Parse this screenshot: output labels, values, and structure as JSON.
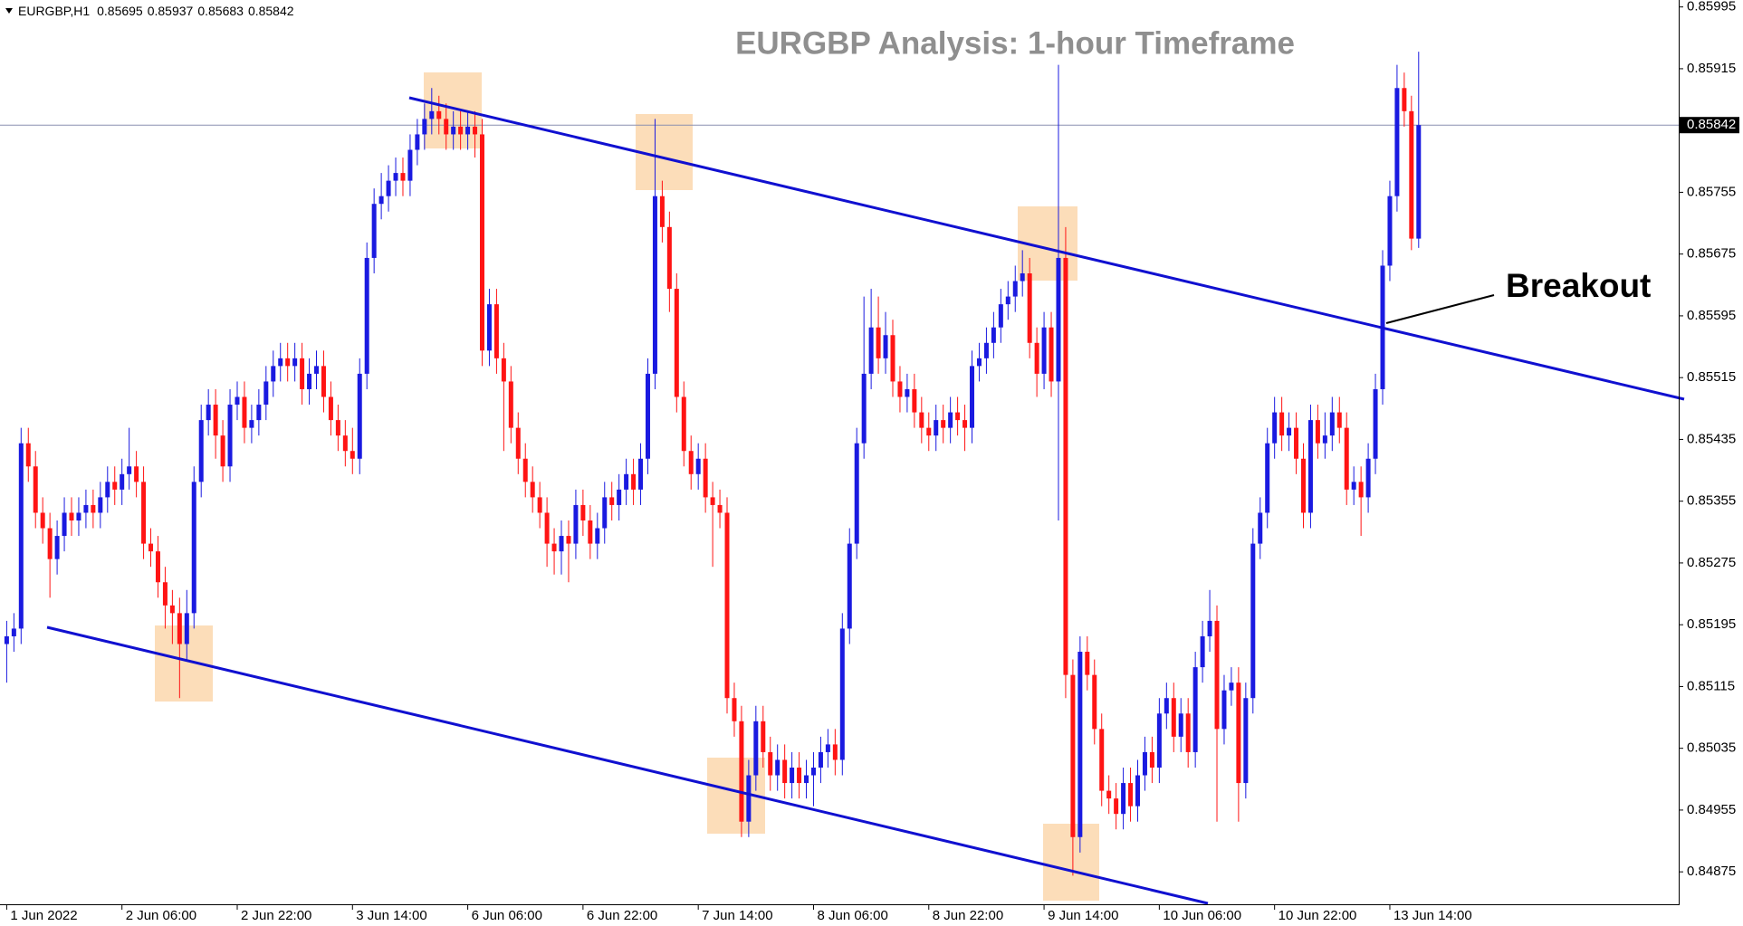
{
  "chart_data": {
    "type": "candlestick",
    "title": "EURGBP Analysis: 1-hour Timeframe",
    "symbol": "EURGBP,H1",
    "header_values": [
      0.85695,
      0.85937,
      0.85683,
      0.85842
    ],
    "annotation": "Breakout",
    "current_price": 0.85842,
    "up_color": "#1a1ae0",
    "down_color": "#ff1414",
    "ylim": [
      0.84833,
      0.86004
    ],
    "yticks": [
      0.85995,
      0.85915,
      0.85755,
      0.85675,
      0.85595,
      0.85515,
      0.85435,
      0.85355,
      0.85275,
      0.85195,
      0.85115,
      0.85035,
      0.84955,
      0.84875
    ],
    "xlim": [
      -0.93,
      232.1
    ],
    "xticks": [
      {
        "value": 0,
        "label": "1 Jun 2022"
      },
      {
        "value": 16,
        "label": "2 Jun 06:00"
      },
      {
        "value": 32,
        "label": "2 Jun 22:00"
      },
      {
        "value": 48,
        "label": "3 Jun 14:00"
      },
      {
        "value": 64,
        "label": "6 Jun 06:00"
      },
      {
        "value": 80,
        "label": "6 Jun 22:00"
      },
      {
        "value": 96,
        "label": "7 Jun 14:00"
      },
      {
        "value": 112,
        "label": "8 Jun 06:00"
      },
      {
        "value": 128,
        "label": "8 Jun 22:00"
      },
      {
        "value": 144,
        "label": "9 Jun 14:00"
      },
      {
        "value": 160,
        "label": "10 Jun 06:00"
      },
      {
        "value": 176,
        "label": "10 Jun 22:00"
      },
      {
        "value": 192,
        "label": "13 Jun 14:00"
      }
    ],
    "open": [
      0.8517,
      0.8518,
      0.8519,
      0.8543,
      0.854,
      0.8534,
      0.8532,
      0.8528,
      0.8531,
      0.8534,
      0.8533,
      0.8534,
      0.8535,
      0.8534,
      0.8536,
      0.8538,
      0.8537,
      0.8539,
      0.854,
      0.8538,
      0.853,
      0.8529,
      0.8525,
      0.8522,
      0.8521,
      0.8517,
      0.8521,
      0.8538,
      0.8546,
      0.8548,
      0.8544,
      0.854,
      0.8548,
      0.8549,
      0.8545,
      0.8546,
      0.8548,
      0.8551,
      0.8553,
      0.8554,
      0.8553,
      0.8554,
      0.855,
      0.8552,
      0.8553,
      0.8549,
      0.8546,
      0.8544,
      0.8542,
      0.8541,
      0.8552,
      0.8567,
      0.8574,
      0.8575,
      0.8577,
      0.8578,
      0.8577,
      0.8581,
      0.8583,
      0.8585,
      0.8586,
      0.8585,
      0.8583,
      0.8584,
      0.8583,
      0.8584,
      0.8583,
      0.8555,
      0.8561,
      0.8554,
      0.8551,
      0.8545,
      0.8541,
      0.8538,
      0.8536,
      0.8534,
      0.853,
      0.8529,
      0.8531,
      0.853,
      0.8535,
      0.8533,
      0.853,
      0.8532,
      0.8536,
      0.8535,
      0.8537,
      0.8539,
      0.8537,
      0.8541,
      0.8552,
      0.8575,
      0.8571,
      0.8563,
      0.8549,
      0.8542,
      0.8539,
      0.8541,
      0.8536,
      0.8535,
      0.8534,
      0.851,
      0.8507,
      0.8494,
      0.85,
      0.8507,
      0.8503,
      0.85,
      0.8502,
      0.8499,
      0.8501,
      0.8499,
      0.85,
      0.8501,
      0.8503,
      0.8504,
      0.8502,
      0.8519,
      0.853,
      0.8543,
      0.8552,
      0.8558,
      0.8554,
      0.8557,
      0.8551,
      0.8549,
      0.855,
      0.8547,
      0.8545,
      0.8544,
      0.8546,
      0.8545,
      0.8547,
      0.8546,
      0.8545,
      0.8553,
      0.8554,
      0.8556,
      0.8558,
      0.8561,
      0.8562,
      0.8564,
      0.8565,
      0.8556,
      0.8552,
      0.8558,
      0.8551,
      0.8567,
      0.8513,
      0.8492,
      0.8516,
      0.8513,
      0.8506,
      0.8498,
      0.8497,
      0.8495,
      0.8499,
      0.8496,
      0.85,
      0.8503,
      0.8501,
      0.8508,
      0.851,
      0.8505,
      0.8508,
      0.8503,
      0.8514,
      0.8518,
      0.852,
      0.8506,
      0.8511,
      0.8512,
      0.8499,
      0.851,
      0.853,
      0.8534,
      0.8543,
      0.8547,
      0.8544,
      0.8545,
      0.8541,
      0.8534,
      0.8546,
      0.8543,
      0.8544,
      0.8547,
      0.8545,
      0.8537,
      0.8538,
      0.8536,
      0.8541,
      0.855,
      0.8566,
      0.8575,
      0.8589,
      0.8586,
      0.85695
    ],
    "high": [
      0.852,
      0.8521,
      0.8545,
      0.8545,
      0.8542,
      0.8536,
      0.8534,
      0.8533,
      0.8536,
      0.8536,
      0.8536,
      0.8537,
      0.8537,
      0.8538,
      0.854,
      0.854,
      0.8541,
      0.8545,
      0.8542,
      0.854,
      0.8532,
      0.8531,
      0.8527,
      0.8524,
      0.8523,
      0.8524,
      0.854,
      0.8548,
      0.855,
      0.855,
      0.8546,
      0.855,
      0.8551,
      0.8551,
      0.8548,
      0.855,
      0.8553,
      0.8555,
      0.8556,
      0.8556,
      0.8556,
      0.8556,
      0.8554,
      0.8555,
      0.8555,
      0.8551,
      0.8548,
      0.8546,
      0.8545,
      0.8554,
      0.8569,
      0.8576,
      0.8578,
      0.8579,
      0.858,
      0.858,
      0.8583,
      0.8585,
      0.8587,
      0.8589,
      0.8588,
      0.8587,
      0.8586,
      0.8586,
      0.8586,
      0.8586,
      0.8585,
      0.8563,
      0.8563,
      0.8556,
      0.8553,
      0.8547,
      0.8543,
      0.854,
      0.8538,
      0.8536,
      0.8532,
      0.8533,
      0.8533,
      0.8537,
      0.8537,
      0.8535,
      0.8534,
      0.8538,
      0.8538,
      0.8539,
      0.8541,
      0.8541,
      0.8543,
      0.8554,
      0.8585,
      0.8577,
      0.8573,
      0.8565,
      0.8551,
      0.8544,
      0.8543,
      0.8543,
      0.8538,
      0.8537,
      0.8536,
      0.8512,
      0.8509,
      0.8502,
      0.8509,
      0.8509,
      0.8505,
      0.8504,
      0.8504,
      0.8503,
      0.8503,
      0.8502,
      0.8503,
      0.8505,
      0.8506,
      0.8506,
      0.8521,
      0.8532,
      0.8545,
      0.8562,
      0.8563,
      0.8562,
      0.856,
      0.8559,
      0.8553,
      0.8552,
      0.8552,
      0.8549,
      0.8547,
      0.8548,
      0.8548,
      0.8549,
      0.8549,
      0.8548,
      0.8555,
      0.8556,
      0.8558,
      0.856,
      0.8563,
      0.8564,
      0.8566,
      0.8568,
      0.8567,
      0.8558,
      0.856,
      0.856,
      0.8592,
      0.8571,
      0.8515,
      0.8518,
      0.8518,
      0.8515,
      0.8508,
      0.85,
      0.8499,
      0.8501,
      0.8501,
      0.8502,
      0.8505,
      0.8505,
      0.851,
      0.8512,
      0.8512,
      0.851,
      0.851,
      0.8516,
      0.852,
      0.8524,
      0.8522,
      0.8513,
      0.8514,
      0.8514,
      0.8512,
      0.8532,
      0.8536,
      0.8545,
      0.8549,
      0.8549,
      0.8547,
      0.8547,
      0.8543,
      0.8548,
      0.8548,
      0.8547,
      0.8549,
      0.8549,
      0.8547,
      0.854,
      0.854,
      0.8543,
      0.8552,
      0.8568,
      0.8577,
      0.8592,
      0.8591,
      0.8588,
      0.85937
    ],
    "low": [
      0.8512,
      0.8516,
      0.8517,
      0.8538,
      0.8532,
      0.853,
      0.8523,
      0.8526,
      0.8529,
      0.8531,
      0.8531,
      0.8532,
      0.8532,
      0.8532,
      0.8534,
      0.8535,
      0.8535,
      0.8537,
      0.8536,
      0.8528,
      0.8527,
      0.8523,
      0.8519,
      0.8517,
      0.851,
      0.8515,
      0.8519,
      0.8536,
      0.8544,
      0.8541,
      0.8538,
      0.8538,
      0.8546,
      0.8543,
      0.8543,
      0.8544,
      0.8546,
      0.8549,
      0.8551,
      0.8551,
      0.8551,
      0.8548,
      0.8548,
      0.855,
      0.8547,
      0.8544,
      0.8542,
      0.854,
      0.8539,
      0.8539,
      0.855,
      0.8565,
      0.8572,
      0.8573,
      0.8575,
      0.8575,
      0.8575,
      0.8579,
      0.8581,
      0.8583,
      0.8583,
      0.8581,
      0.8581,
      0.8581,
      0.8581,
      0.858,
      0.8553,
      0.8553,
      0.8552,
      0.8542,
      0.8543,
      0.8539,
      0.8536,
      0.8534,
      0.8532,
      0.8527,
      0.8526,
      0.8526,
      0.8525,
      0.8528,
      0.8531,
      0.8528,
      0.8528,
      0.853,
      0.8533,
      0.8533,
      0.8535,
      0.8535,
      0.8535,
      0.8539,
      0.855,
      0.8569,
      0.856,
      0.8547,
      0.854,
      0.8537,
      0.8537,
      0.8534,
      0.8527,
      0.8532,
      0.8508,
      0.8505,
      0.8492,
      0.8492,
      0.8498,
      0.8501,
      0.8498,
      0.8498,
      0.8497,
      0.8497,
      0.8497,
      0.8497,
      0.8496,
      0.8499,
      0.8501,
      0.85,
      0.85,
      0.8517,
      0.8528,
      0.8541,
      0.855,
      0.8552,
      0.8552,
      0.8549,
      0.8547,
      0.8547,
      0.8545,
      0.8543,
      0.8542,
      0.8542,
      0.8543,
      0.8543,
      0.8544,
      0.8542,
      0.8543,
      0.8551,
      0.8552,
      0.8554,
      0.8556,
      0.8559,
      0.856,
      0.8562,
      0.8554,
      0.8549,
      0.855,
      0.8549,
      0.8533,
      0.851,
      0.8487,
      0.849,
      0.8511,
      0.8504,
      0.8496,
      0.8495,
      0.8493,
      0.8493,
      0.8494,
      0.8494,
      0.8498,
      0.8499,
      0.8499,
      0.8506,
      0.8503,
      0.8503,
      0.8501,
      0.8501,
      0.8512,
      0.8516,
      0.8494,
      0.8504,
      0.8509,
      0.8494,
      0.8497,
      0.8508,
      0.8528,
      0.8532,
      0.8541,
      0.8542,
      0.8542,
      0.8539,
      0.8532,
      0.8532,
      0.8541,
      0.8541,
      0.8542,
      0.8543,
      0.8535,
      0.8535,
      0.8531,
      0.8534,
      0.8539,
      0.8548,
      0.8564,
      0.8573,
      0.8584,
      0.8568,
      0.85683
    ],
    "close": [
      0.8518,
      0.8519,
      0.8543,
      0.854,
      0.8534,
      0.8532,
      0.8528,
      0.8531,
      0.8534,
      0.8533,
      0.8534,
      0.8535,
      0.8534,
      0.8536,
      0.8538,
      0.8537,
      0.8539,
      0.854,
      0.8538,
      0.853,
      0.8529,
      0.8525,
      0.8522,
      0.8521,
      0.8517,
      0.8521,
      0.8538,
      0.8546,
      0.8548,
      0.8544,
      0.854,
      0.8548,
      0.8549,
      0.8545,
      0.8546,
      0.8548,
      0.8551,
      0.8553,
      0.8554,
      0.8553,
      0.8554,
      0.855,
      0.8552,
      0.8553,
      0.8549,
      0.8546,
      0.8544,
      0.8542,
      0.8541,
      0.8552,
      0.8567,
      0.8574,
      0.8575,
      0.8577,
      0.8578,
      0.8577,
      0.8581,
      0.8583,
      0.8585,
      0.8586,
      0.8585,
      0.8583,
      0.8584,
      0.8583,
      0.8584,
      0.8583,
      0.8555,
      0.8561,
      0.8554,
      0.8551,
      0.8545,
      0.8541,
      0.8538,
      0.8536,
      0.8534,
      0.853,
      0.8529,
      0.8531,
      0.853,
      0.8535,
      0.8533,
      0.853,
      0.8532,
      0.8536,
      0.8535,
      0.8537,
      0.8539,
      0.8537,
      0.8541,
      0.8552,
      0.8575,
      0.8571,
      0.8563,
      0.8549,
      0.8542,
      0.8539,
      0.8541,
      0.8536,
      0.8535,
      0.8534,
      0.851,
      0.8507,
      0.8494,
      0.85,
      0.8507,
      0.8503,
      0.85,
      0.8502,
      0.8499,
      0.8501,
      0.8499,
      0.85,
      0.8501,
      0.8503,
      0.8504,
      0.8502,
      0.8519,
      0.853,
      0.8543,
      0.8552,
      0.8558,
      0.8554,
      0.8557,
      0.8551,
      0.8549,
      0.855,
      0.8547,
      0.8545,
      0.8544,
      0.8546,
      0.8545,
      0.8547,
      0.8546,
      0.8545,
      0.8553,
      0.8554,
      0.8556,
      0.8558,
      0.8561,
      0.8562,
      0.8564,
      0.8565,
      0.8556,
      0.8552,
      0.8558,
      0.8551,
      0.8567,
      0.8513,
      0.8492,
      0.8516,
      0.8513,
      0.8506,
      0.8498,
      0.8497,
      0.8495,
      0.8499,
      0.8496,
      0.85,
      0.8503,
      0.8501,
      0.8508,
      0.851,
      0.8505,
      0.8508,
      0.8503,
      0.8514,
      0.8518,
      0.852,
      0.8506,
      0.8511,
      0.8512,
      0.8499,
      0.851,
      0.853,
      0.8534,
      0.8543,
      0.8547,
      0.8544,
      0.8545,
      0.8541,
      0.8534,
      0.8546,
      0.8543,
      0.8544,
      0.8547,
      0.8545,
      0.8537,
      0.8538,
      0.8536,
      0.8541,
      0.855,
      0.8566,
      0.8575,
      0.8589,
      0.8586,
      0.85695,
      0.85842
    ]
  }
}
